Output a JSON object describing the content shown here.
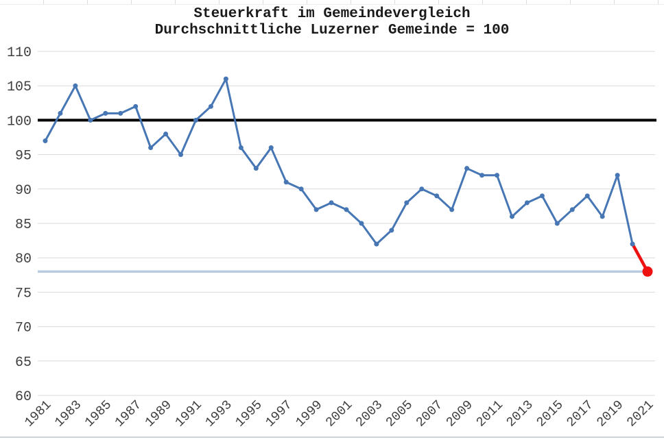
{
  "title": {
    "line1": "Steuerkraft im Gemeindevergleich",
    "line2": "Durchschnittliche Luzerner Gemeinde = 100"
  },
  "chart_data": {
    "type": "line",
    "title": "Steuerkraft im Gemeindevergleich",
    "subtitle": "Durchschnittliche Luzerner Gemeinde = 100",
    "x": [
      1981,
      1982,
      1983,
      1984,
      1985,
      1986,
      1987,
      1988,
      1989,
      1990,
      1991,
      1992,
      1993,
      1994,
      1995,
      1996,
      1997,
      1998,
      1999,
      2000,
      2001,
      2002,
      2003,
      2004,
      2005,
      2006,
      2007,
      2008,
      2009,
      2010,
      2011,
      2012,
      2013,
      2014,
      2015,
      2016,
      2017,
      2018,
      2019,
      2020,
      2021
    ],
    "values": [
      97,
      101,
      105,
      100,
      101,
      101,
      102,
      96,
      98,
      95,
      100,
      102,
      106,
      96,
      93,
      96,
      91,
      90,
      87,
      88,
      87,
      85,
      82,
      84,
      88,
      90,
      89,
      87,
      93,
      92,
      92,
      86,
      88,
      89,
      85,
      87,
      89,
      86,
      92,
      82,
      78
    ],
    "ylim": [
      60,
      110
    ],
    "ytick_step": 5,
    "ytick_labels": [
      "60",
      "65",
      "70",
      "75",
      "80",
      "85",
      "90",
      "95",
      "100",
      "105",
      "110"
    ],
    "xtick_labels": [
      "1981",
      "1983",
      "1985",
      "1987",
      "1989",
      "1991",
      "1993",
      "1995",
      "1997",
      "1999",
      "2001",
      "2003",
      "2005",
      "2007",
      "2009",
      "2011",
      "2013",
      "2015",
      "2017",
      "2019",
      "2021"
    ],
    "grid": "horizontal",
    "legend": "none",
    "line_color": "#4676b4",
    "marker_color": "#4676b4",
    "final_segment_color": "#ee1111",
    "final_point_color": "#ee1111",
    "gridline_color": "#d9d9d9",
    "axis_label_color": "#3f3f3f",
    "reference_lines": [
      {
        "value": 100,
        "color": "#000000",
        "width": 4,
        "extends_to": "plot_right"
      },
      {
        "value": 78,
        "color": "#b8cbe1",
        "width": 3.5,
        "extends_to": "last_point"
      }
    ]
  }
}
